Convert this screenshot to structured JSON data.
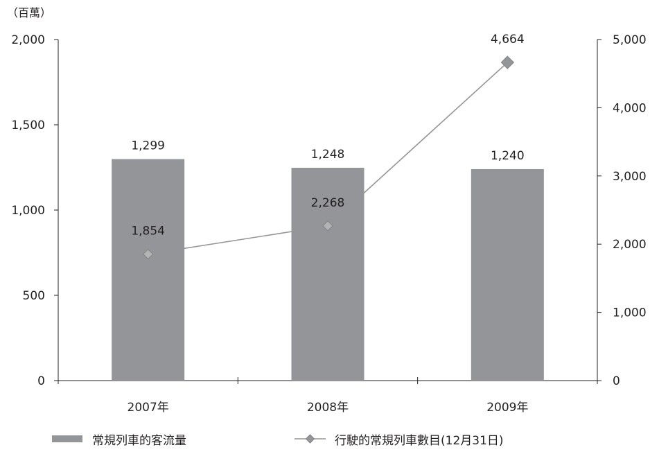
{
  "chart_data": {
    "type": "bar",
    "y_unit_label": "（百萬）",
    "categories": [
      "2007年",
      "2008年",
      "2009年"
    ],
    "ylim_left": [
      0,
      2000
    ],
    "left_ticks": [
      "0",
      "500",
      "1,000",
      "1,500",
      "2,000"
    ],
    "ylim_right": [
      0,
      5000
    ],
    "right_ticks": [
      "0",
      "1,000",
      "2,000",
      "3,000",
      "4,000",
      "5,000"
    ],
    "series": [
      {
        "name": "常規列車的客流量",
        "type": "bar",
        "axis": "left",
        "color": "#939598",
        "values": [
          1299,
          1248,
          1240
        ],
        "labels": [
          "1,299",
          "1,248",
          "1,240"
        ]
      },
      {
        "name": "行駛的常規列車數目(12月31日)",
        "type": "line",
        "axis": "right",
        "color": "#939598",
        "values": [
          1854,
          2268,
          4664
        ],
        "labels": [
          "1,854",
          "2,268",
          "4,664"
        ]
      }
    ],
    "grid": false,
    "legend_position": "bottom"
  }
}
